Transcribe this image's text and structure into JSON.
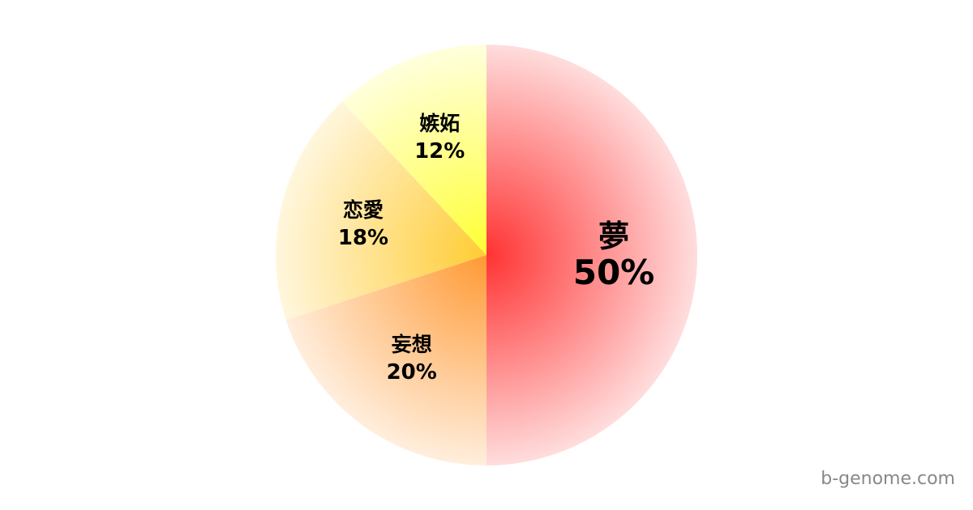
{
  "chart_data": {
    "type": "pie",
    "start_angle": "top, clockwise",
    "slices": [
      {
        "label": "夢",
        "value": 50,
        "value_label": "50%",
        "color_center": "#ff3333",
        "color_edge": "#ffdddd"
      },
      {
        "label": "妄想",
        "value": 20,
        "value_label": "20%",
        "color_center": "#ff9933",
        "color_edge": "#ffeedd"
      },
      {
        "label": "恋愛",
        "value": 18,
        "value_label": "18%",
        "color_center": "#ffcc33",
        "color_edge": "#fff6dd"
      },
      {
        "label": "嫉妬",
        "value": 12,
        "value_label": "12%",
        "color_center": "#ffff33",
        "color_edge": "#ffffdd"
      }
    ]
  },
  "watermark": "b-genome.com"
}
